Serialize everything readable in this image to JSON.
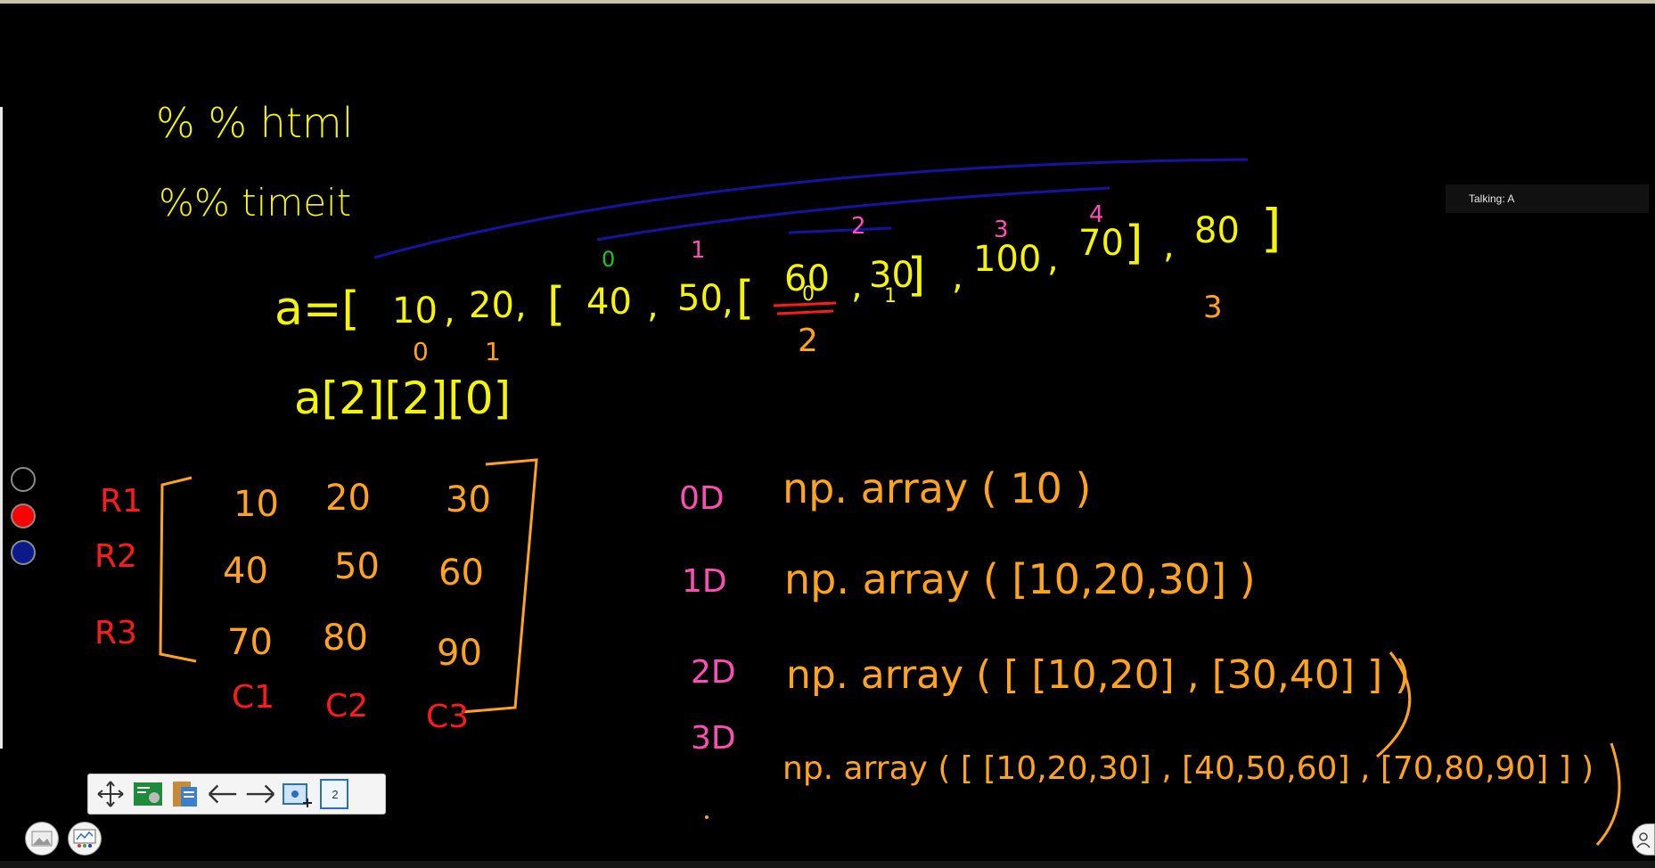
{
  "status": {
    "talking": "Talking: A"
  },
  "toolbar": {
    "page_number": "2",
    "icons": [
      "move-icon",
      "screenshot-icon",
      "clipboard-icon",
      "arrow-left-icon",
      "arrow-right-icon",
      "add-slide-icon",
      "page-icon"
    ]
  },
  "palette": {
    "colors": [
      "#000000",
      "#ff0000",
      "#0a1a8a"
    ],
    "labels": [
      "black",
      "red",
      "blue"
    ]
  },
  "colors": {
    "yellow": "#f5f500",
    "orange": "#ffa31a",
    "red": "#ff1a1a",
    "pink": "#ff4db8",
    "blue": "#1414a0",
    "green": "#1ac81a"
  },
  "board": {
    "magic1": "% % html",
    "magic2": "%% timeit",
    "list_expr": "a=[ 10 , 20 , [ 40 , 50 , [ 60 , 30 ] , 100 , 70 ] , 80 ]",
    "list_a": "a=[",
    "list_items": [
      "10",
      ",",
      "20",
      ",",
      "[",
      "40",
      ",",
      "50",
      ",",
      "[",
      "60",
      ",",
      "30",
      "]",
      ",",
      "100",
      ",",
      "70",
      "]",
      ",",
      "80",
      "]"
    ],
    "index_expr": "a[2][2][0]",
    "idx_outer": [
      "0",
      "1",
      "3"
    ],
    "idx_outer_2": "2",
    "idx_mid": [
      "0",
      "1",
      "2",
      "3",
      "4"
    ],
    "idx_inner": [
      "0",
      "1"
    ],
    "matrix": [
      [
        "10",
        "20",
        "30"
      ],
      [
        "40",
        "50",
        "60"
      ],
      [
        "70",
        "80",
        "90"
      ]
    ],
    "rows": [
      "R1",
      "R2",
      "R3"
    ],
    "cols": [
      "C1",
      "C2",
      "C3"
    ],
    "dims": [
      "0D",
      "1D",
      "2D",
      "3D"
    ],
    "arrays": [
      "np. array ( 10 )",
      "np. array ( [10,20,30] )",
      "np. array ( [ [10,20] , [30,40] ] )",
      "np. array ( [ [10,20,30] , [40,50,60] , [70,80,90] ] )"
    ]
  }
}
